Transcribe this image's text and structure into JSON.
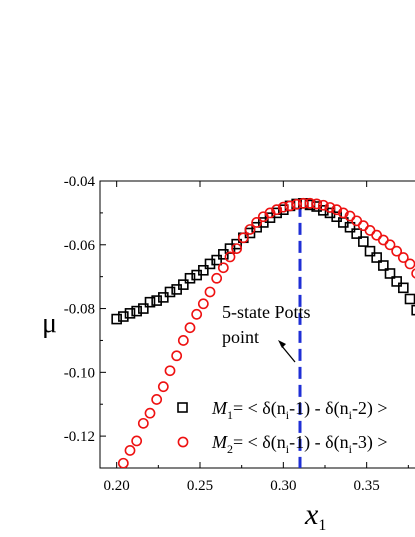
{
  "chart_data": {
    "type": "scatter",
    "title": "",
    "xlabel": "x",
    "xlabel_sub": "1",
    "ylabel": "μ",
    "xlim": [
      0.19,
      0.385
    ],
    "ylim": [
      -0.13,
      -0.04
    ],
    "x_ticks": [
      "0.20",
      "0.25",
      "0.30",
      "0.35"
    ],
    "x_tick_values": [
      0.2,
      0.25,
      0.3,
      0.35
    ],
    "y_ticks": [
      "-0.04",
      "-0.06",
      "-0.08",
      "-0.10",
      "-0.12"
    ],
    "y_tick_values": [
      -0.04,
      -0.06,
      -0.08,
      -0.1,
      -0.12
    ],
    "series": [
      {
        "name": "M1 = < δ(ni-1) - δ(ni-2) >",
        "marker": "square",
        "color": "#000000",
        "x": [
          0.2,
          0.204,
          0.208,
          0.212,
          0.216,
          0.22,
          0.224,
          0.228,
          0.232,
          0.236,
          0.24,
          0.244,
          0.248,
          0.252,
          0.256,
          0.26,
          0.264,
          0.268,
          0.272,
          0.276,
          0.28,
          0.284,
          0.288,
          0.292,
          0.296,
          0.3,
          0.304,
          0.308,
          0.312,
          0.316,
          0.32,
          0.324,
          0.328,
          0.332,
          0.336,
          0.34,
          0.344,
          0.348,
          0.352,
          0.356,
          0.36,
          0.364,
          0.368,
          0.372,
          0.376,
          0.38
        ],
        "y": [
          -0.0833,
          -0.0825,
          -0.0815,
          -0.0808,
          -0.08,
          -0.078,
          -0.0775,
          -0.0765,
          -0.0748,
          -0.074,
          -0.0725,
          -0.0705,
          -0.0695,
          -0.068,
          -0.066,
          -0.0648,
          -0.063,
          -0.0612,
          -0.0598,
          -0.0578,
          -0.0563,
          -0.0545,
          -0.053,
          -0.0515,
          -0.05,
          -0.049,
          -0.0478,
          -0.0472,
          -0.047,
          -0.0475,
          -0.048,
          -0.0492,
          -0.05,
          -0.0512,
          -0.053,
          -0.0545,
          -0.0565,
          -0.059,
          -0.062,
          -0.064,
          -0.0665,
          -0.069,
          -0.0715,
          -0.0735,
          -0.077,
          -0.0805
        ],
        "note": "values continue beyond the right plot edge"
      },
      {
        "name": "M2 = < δ(ni-1) - δ(ni-3) >",
        "marker": "circle",
        "color": "#ee1111",
        "x": [
          0.204,
          0.208,
          0.212,
          0.216,
          0.22,
          0.224,
          0.228,
          0.232,
          0.236,
          0.24,
          0.244,
          0.248,
          0.252,
          0.256,
          0.26,
          0.264,
          0.268,
          0.272,
          0.276,
          0.28,
          0.284,
          0.288,
          0.292,
          0.296,
          0.3,
          0.304,
          0.308,
          0.312,
          0.316,
          0.32,
          0.324,
          0.328,
          0.332,
          0.336,
          0.34,
          0.344,
          0.348,
          0.352,
          0.356,
          0.36,
          0.364,
          0.368,
          0.372,
          0.376,
          0.38
        ],
        "y": [
          -0.1285,
          -0.1245,
          -0.1215,
          -0.116,
          -0.1128,
          -0.1085,
          -0.1045,
          -0.0995,
          -0.0948,
          -0.09,
          -0.086,
          -0.0818,
          -0.0785,
          -0.0748,
          -0.0705,
          -0.0672,
          -0.0638,
          -0.0612,
          -0.0578,
          -0.0552,
          -0.053,
          -0.0512,
          -0.05,
          -0.049,
          -0.0482,
          -0.0478,
          -0.0473,
          -0.047,
          -0.047,
          -0.0472,
          -0.0476,
          -0.0483,
          -0.049,
          -0.05,
          -0.051,
          -0.0525,
          -0.054,
          -0.0555,
          -0.057,
          -0.0585,
          -0.06,
          -0.062,
          -0.064,
          -0.066,
          -0.069
        ],
        "note": "values continue beyond the right plot edge"
      }
    ],
    "reference_line": {
      "x": 0.31,
      "style": "dashed",
      "color": "#1f2fd6"
    },
    "annotation": {
      "line1": "5-state Potts",
      "line2": "point",
      "arrow_to": [
        0.305,
        -0.098
      ]
    },
    "legend": {
      "placement": "bottom-right",
      "entries": [
        {
          "prefix": "M",
          "sub": "1",
          "body": "= < δ(n",
          "sub2": "i",
          "tail": "-1) - δ(n",
          "sub3": "i",
          "end": "-2) >"
        },
        {
          "prefix": "M",
          "sub": "2",
          "body": "= < δ(n",
          "sub2": "i",
          "tail": "-1) - δ(n",
          "sub3": "i",
          "end": "-3) >"
        }
      ]
    },
    "grid": false
  }
}
